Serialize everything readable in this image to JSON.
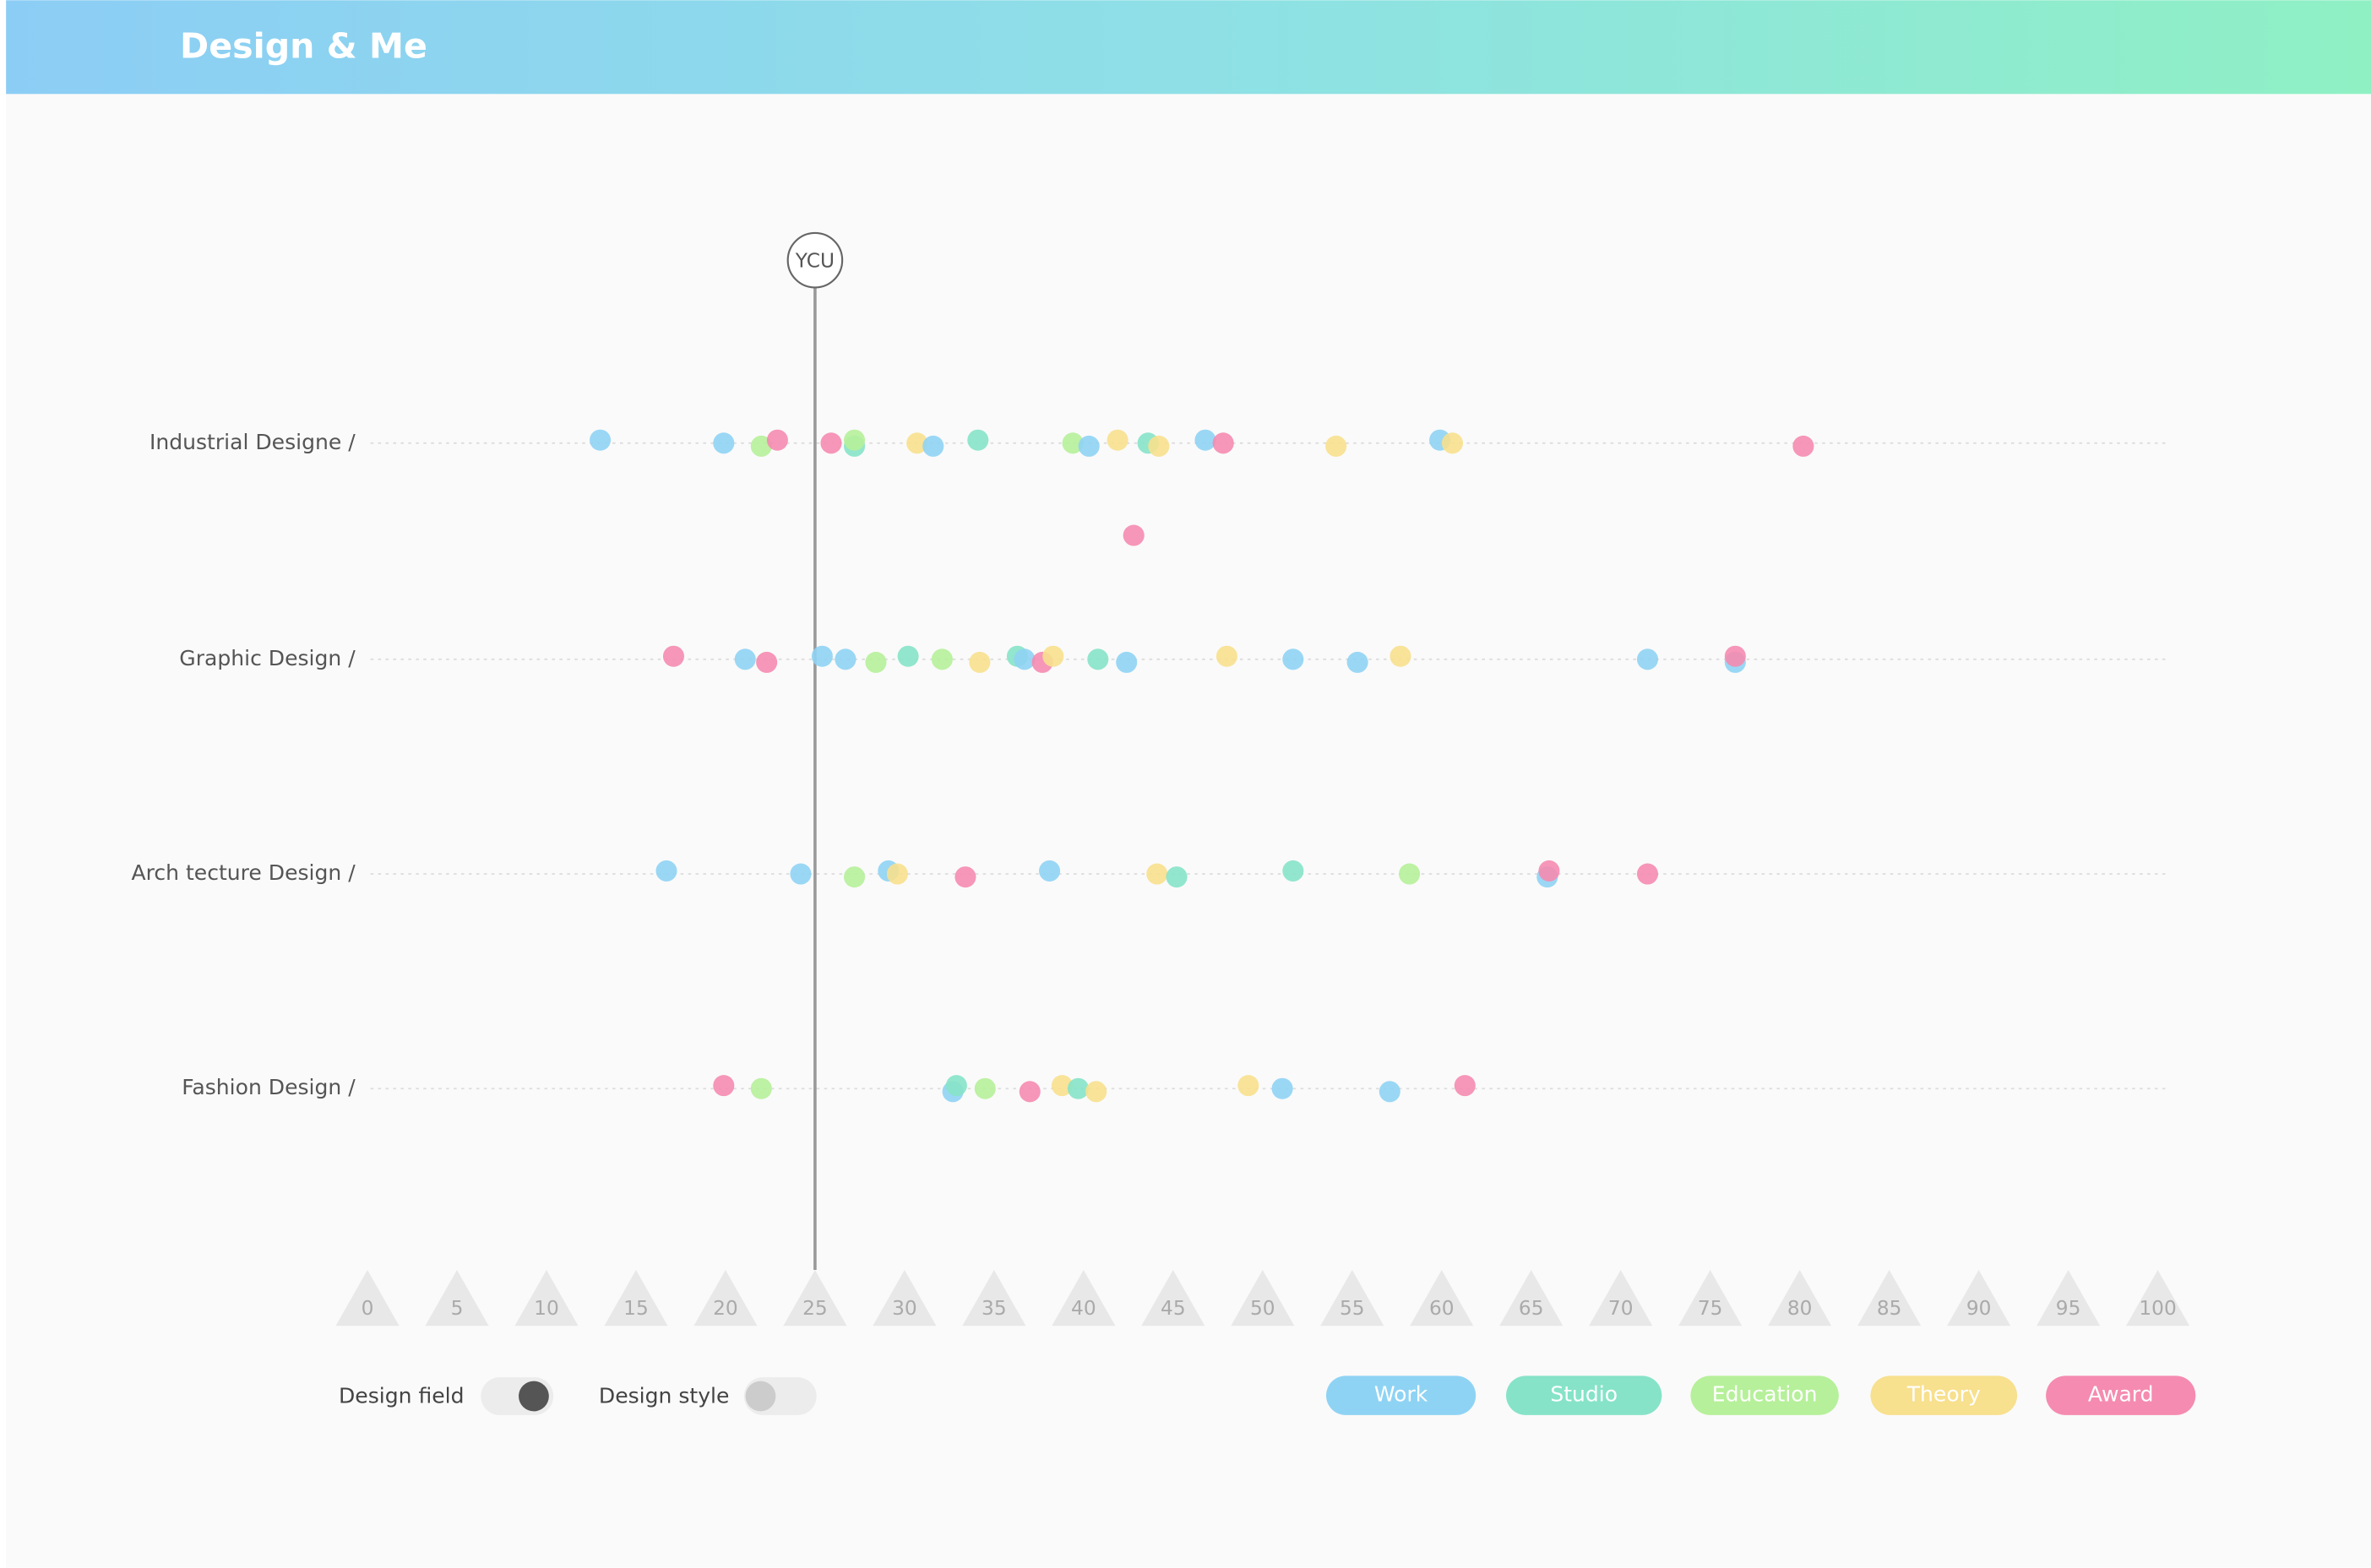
{
  "header": {
    "title": "Design & Me"
  },
  "chart_data": {
    "type": "scatter",
    "xlim": [
      0,
      100
    ],
    "xticks": [
      0,
      5,
      10,
      15,
      20,
      25,
      30,
      35,
      40,
      45,
      50,
      55,
      60,
      65,
      70,
      75,
      80,
      85,
      90,
      95,
      100
    ],
    "marker": {
      "label": "YCU",
      "x": 25
    },
    "series": [
      {
        "name": "Work",
        "color": "#8fd3f4"
      },
      {
        "name": "Studio",
        "color": "#86e3c8"
      },
      {
        "name": "Education",
        "color": "#b6f09a"
      },
      {
        "name": "Theory",
        "color": "#f7e08e"
      },
      {
        "name": "Award",
        "color": "#f58bb0"
      }
    ],
    "rows": [
      {
        "name": "Industrial Designe /",
        "points": [
          {
            "x": 13.0,
            "series": "Work"
          },
          {
            "x": 19.9,
            "series": "Work"
          },
          {
            "x": 22.0,
            "series": "Education"
          },
          {
            "x": 22.9,
            "series": "Award"
          },
          {
            "x": 25.9,
            "series": "Award"
          },
          {
            "x": 27.2,
            "series": "Studio"
          },
          {
            "x": 27.2,
            "series": "Education"
          },
          {
            "x": 30.7,
            "series": "Theory"
          },
          {
            "x": 31.6,
            "series": "Work"
          },
          {
            "x": 34.1,
            "series": "Studio"
          },
          {
            "x": 39.4,
            "series": "Education"
          },
          {
            "x": 40.3,
            "series": "Work"
          },
          {
            "x": 41.9,
            "series": "Theory"
          },
          {
            "x": 43.6,
            "series": "Studio"
          },
          {
            "x": 44.2,
            "series": "Theory"
          },
          {
            "x": 46.8,
            "series": "Work"
          },
          {
            "x": 47.8,
            "series": "Award"
          },
          {
            "x": 54.1,
            "series": "Theory"
          },
          {
            "x": 59.9,
            "series": "Work"
          },
          {
            "x": 60.6,
            "series": "Theory"
          },
          {
            "x": 80.2,
            "series": "Award"
          },
          {
            "x": 42.8,
            "series": "Award"
          }
        ]
      },
      {
        "name": "Graphic Design /",
        "points": [
          {
            "x": 17.1,
            "series": "Award"
          },
          {
            "x": 21.1,
            "series": "Work"
          },
          {
            "x": 22.3,
            "series": "Award"
          },
          {
            "x": 25.4,
            "series": "Work"
          },
          {
            "x": 26.7,
            "series": "Work"
          },
          {
            "x": 28.4,
            "series": "Education"
          },
          {
            "x": 30.2,
            "series": "Studio"
          },
          {
            "x": 32.1,
            "series": "Education"
          },
          {
            "x": 34.2,
            "series": "Theory"
          },
          {
            "x": 36.3,
            "series": "Studio"
          },
          {
            "x": 36.7,
            "series": "Work"
          },
          {
            "x": 37.7,
            "series": "Award"
          },
          {
            "x": 38.3,
            "series": "Theory"
          },
          {
            "x": 40.8,
            "series": "Studio"
          },
          {
            "x": 42.4,
            "series": "Work"
          },
          {
            "x": 48.0,
            "series": "Theory"
          },
          {
            "x": 51.7,
            "series": "Work"
          },
          {
            "x": 55.3,
            "series": "Work"
          },
          {
            "x": 57.7,
            "series": "Theory"
          },
          {
            "x": 71.5,
            "series": "Work"
          },
          {
            "x": 76.4,
            "series": "Work"
          },
          {
            "x": 76.4,
            "series": "Award"
          }
        ]
      },
      {
        "name": "Arch tecture Design /",
        "points": [
          {
            "x": 16.7,
            "series": "Work"
          },
          {
            "x": 24.2,
            "series": "Work"
          },
          {
            "x": 27.2,
            "series": "Education"
          },
          {
            "x": 29.1,
            "series": "Work"
          },
          {
            "x": 29.6,
            "series": "Theory"
          },
          {
            "x": 33.4,
            "series": "Award"
          },
          {
            "x": 38.1,
            "series": "Work"
          },
          {
            "x": 44.1,
            "series": "Theory"
          },
          {
            "x": 45.2,
            "series": "Studio"
          },
          {
            "x": 51.7,
            "series": "Studio"
          },
          {
            "x": 58.2,
            "series": "Education"
          },
          {
            "x": 65.9,
            "series": "Work"
          },
          {
            "x": 66.0,
            "series": "Award"
          },
          {
            "x": 71.5,
            "series": "Award"
          }
        ]
      },
      {
        "name": "Fashion  Design /",
        "points": [
          {
            "x": 19.9,
            "series": "Award"
          },
          {
            "x": 22.0,
            "series": "Education"
          },
          {
            "x": 32.7,
            "series": "Work"
          },
          {
            "x": 32.9,
            "series": "Studio"
          },
          {
            "x": 34.5,
            "series": "Education"
          },
          {
            "x": 37.0,
            "series": "Award"
          },
          {
            "x": 38.8,
            "series": "Theory"
          },
          {
            "x": 39.7,
            "series": "Studio"
          },
          {
            "x": 40.7,
            "series": "Theory"
          },
          {
            "x": 49.2,
            "series": "Theory"
          },
          {
            "x": 51.1,
            "series": "Work"
          },
          {
            "x": 57.1,
            "series": "Work"
          },
          {
            "x": 61.3,
            "series": "Award"
          }
        ]
      }
    ]
  },
  "controls": {
    "toggles": [
      {
        "label": "Design field"
      },
      {
        "label": "Design style"
      }
    ]
  }
}
